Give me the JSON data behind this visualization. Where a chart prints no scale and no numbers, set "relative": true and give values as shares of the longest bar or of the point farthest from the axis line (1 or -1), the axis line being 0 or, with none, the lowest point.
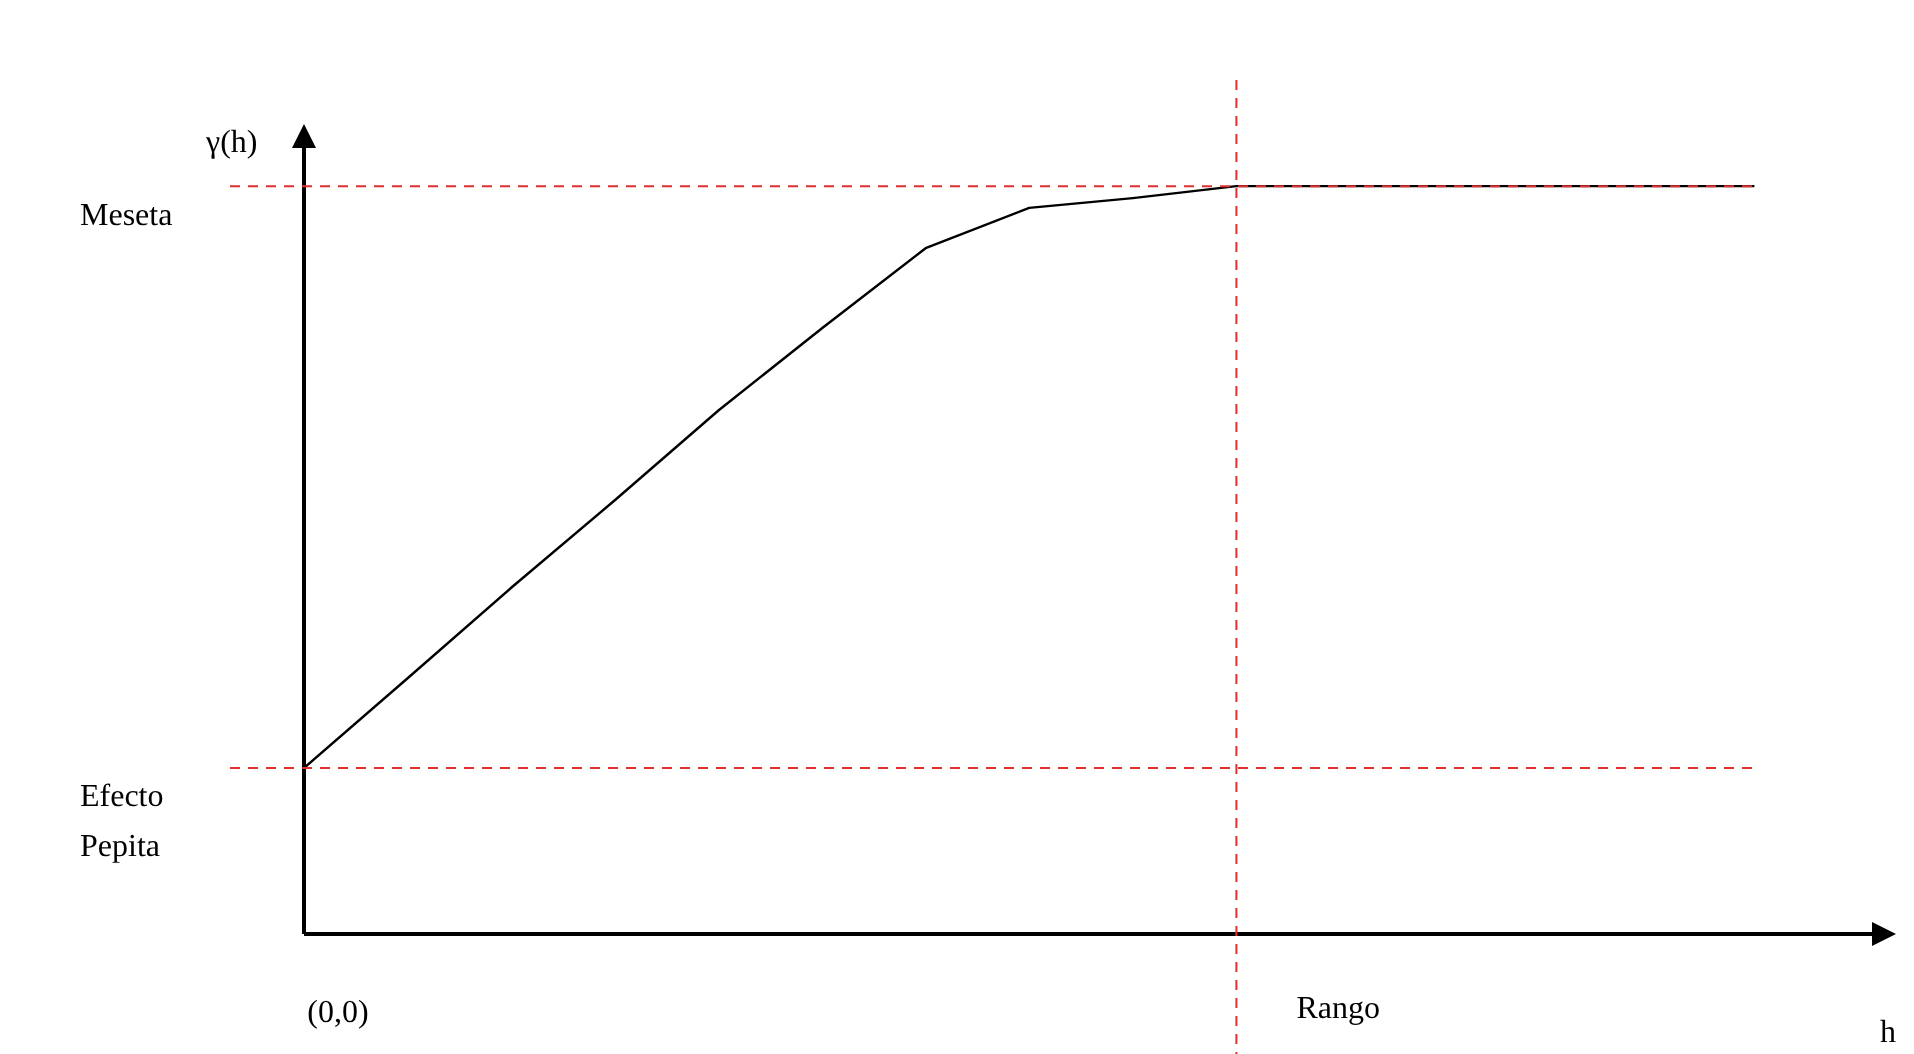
{
  "chart_data": {
    "type": "line",
    "relative": true,
    "xlabel": "h",
    "ylabel": "γ(h)",
    "categories": [
      null,
      null,
      null,
      null,
      null,
      null,
      null,
      null,
      null,
      null,
      null,
      null,
      null,
      null,
      null,
      null
    ],
    "series": [
      {
        "color": "#000000",
        "values": [
          0.222,
          0.342,
          0.463,
          0.58,
          0.7,
          0.81,
          0.917,
          0.971,
          0.984,
          1,
          1,
          1,
          1,
          1,
          1,
          null
        ]
      }
    ],
    "ref_lines": [
      {
        "axis": "y",
        "value": 1,
        "label": "Meseta",
        "color": "#e03030",
        "line_style": "dashed"
      },
      {
        "axis": "y",
        "value": 0.222,
        "label": "Efecto Pepita",
        "color": "#e03030",
        "line_style": "dashed"
      }
    ],
    "annotations": [
      "(0,0)",
      "Rango"
    ],
    "legend": false,
    "marker": "none",
    "line_style": "solid"
  }
}
